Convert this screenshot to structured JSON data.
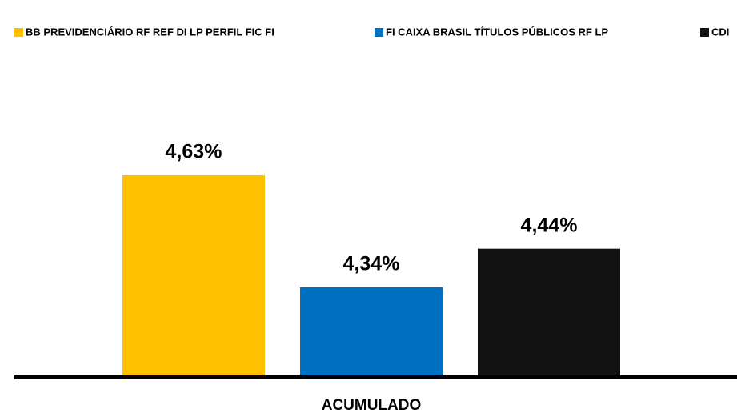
{
  "chart_data": {
    "type": "bar",
    "categories": [
      "ACUMULADO"
    ],
    "series": [
      {
        "name": "BB PREVIDENCIÁRIO RF REF DI LP PERFIL FIC FI",
        "color": "#ffc000",
        "values": [
          4.63
        ],
        "value_labels": [
          "4,63%"
        ]
      },
      {
        "name": "FI CAIXA BRASIL TÍTULOS PÚBLICOS RF LP",
        "color": "#0070c0",
        "values": [
          4.34
        ],
        "value_labels": [
          "4,34%"
        ]
      },
      {
        "name": "CDI",
        "color": "#111111",
        "values": [
          4.44
        ],
        "value_labels": [
          "4,44%"
        ]
      }
    ],
    "ylim": [
      4.11,
      4.9
    ],
    "legend": "top"
  }
}
